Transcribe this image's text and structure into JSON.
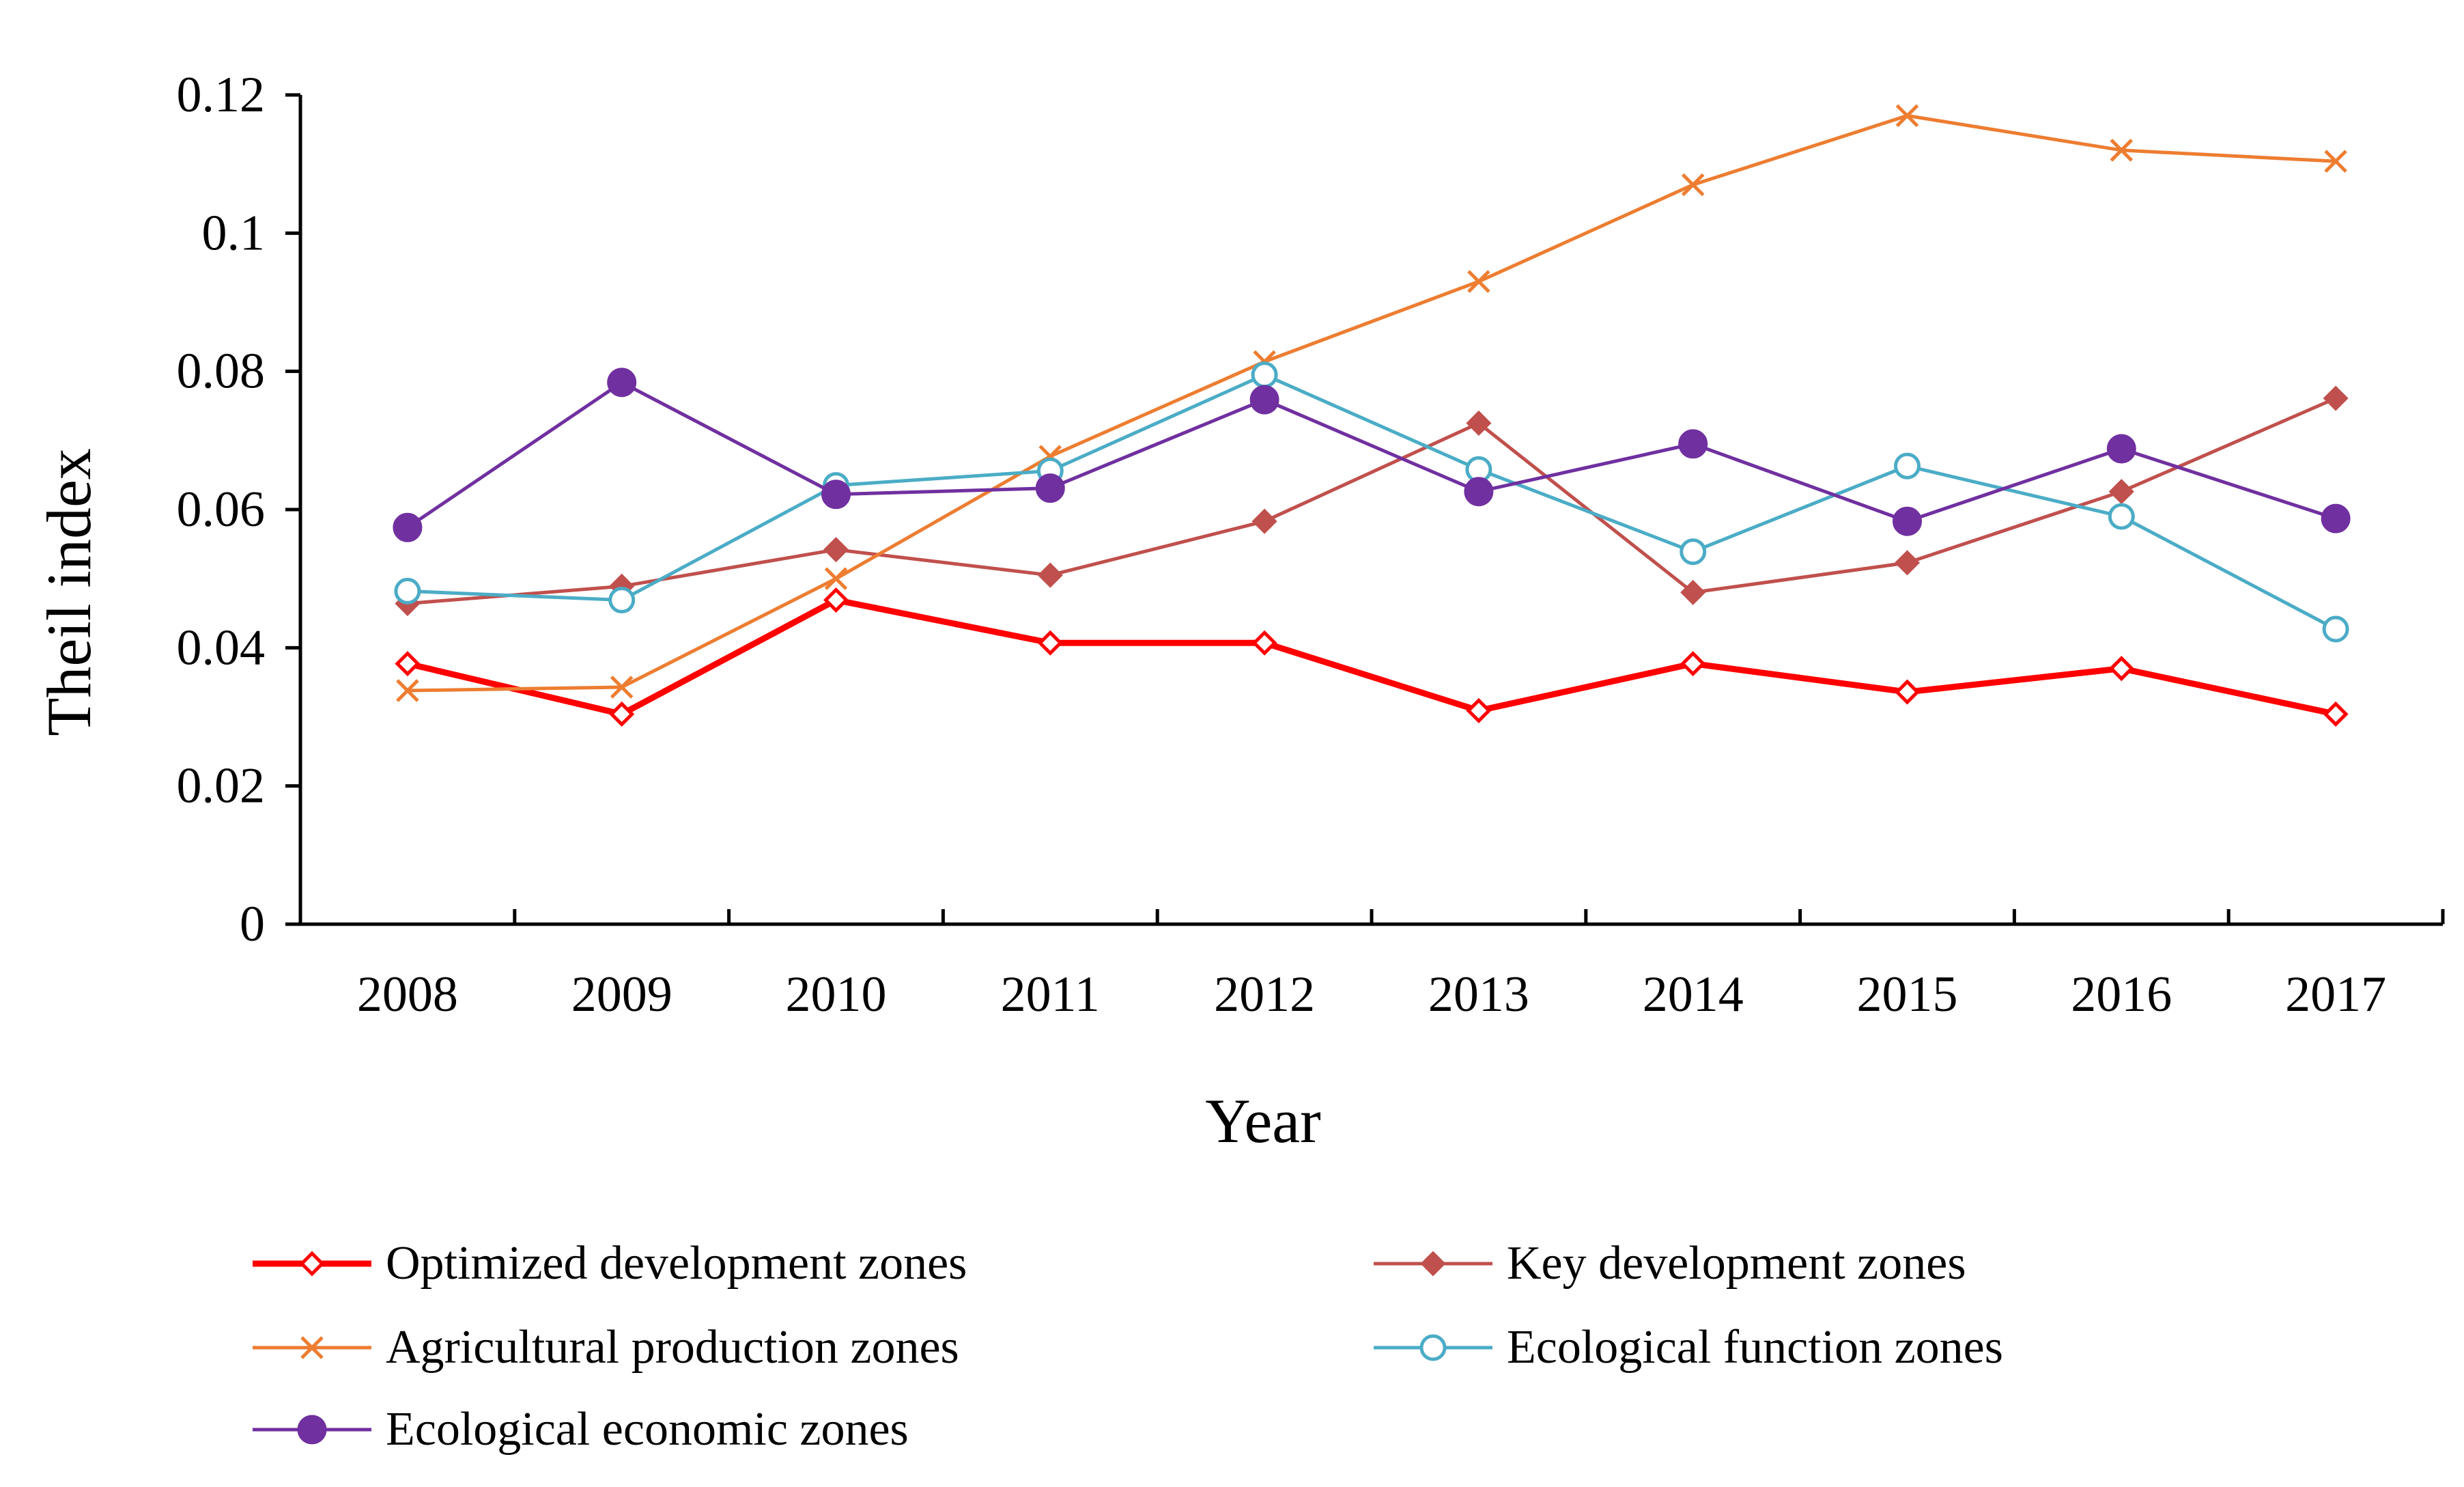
{
  "chart_data": {
    "type": "line",
    "title": "",
    "xlabel": "Year",
    "ylabel": "Theil index",
    "ylim": [
      0,
      0.12
    ],
    "yticks": [
      "0",
      "0.02",
      "0.04",
      "0.06",
      "0.08",
      "0.1",
      "0.12"
    ],
    "ytick_values": [
      0,
      0.02,
      0.04,
      0.06,
      0.08,
      0.1,
      0.12
    ],
    "categories": [
      "2008",
      "2009",
      "2010",
      "2011",
      "2012",
      "2013",
      "2014",
      "2015",
      "2016",
      "2017"
    ],
    "grid": false,
    "legend_position": "bottom",
    "series": [
      {
        "name": "Optimized development zones",
        "color": "#FF0000",
        "marker": "diamond-open",
        "values": [
          0.0377,
          0.0304,
          0.0469,
          0.0407,
          0.0407,
          0.0309,
          0.0377,
          0.0336,
          0.037,
          0.0304
        ]
      },
      {
        "name": "Key development zones",
        "color": "#C0504D",
        "marker": "diamond-filled",
        "values": [
          0.0464,
          0.0489,
          0.0542,
          0.0505,
          0.0583,
          0.0725,
          0.048,
          0.0523,
          0.0626,
          0.0761
        ]
      },
      {
        "name": "Agricultural production zones",
        "color": "#ED7D31",
        "marker": "x",
        "values": [
          0.0338,
          0.0343,
          0.05,
          0.0677,
          0.0814,
          0.093,
          0.107,
          0.117,
          0.112,
          0.1104
        ]
      },
      {
        "name": "Ecological function zones",
        "color": "#4BACC6",
        "marker": "circle-open",
        "values": [
          0.0482,
          0.0469,
          0.0635,
          0.0656,
          0.0795,
          0.0658,
          0.0539,
          0.0663,
          0.059,
          0.0427
        ]
      },
      {
        "name": "Ecological economic zones",
        "color": "#7030A0",
        "marker": "circle-filled",
        "values": [
          0.0574,
          0.0784,
          0.0622,
          0.0631,
          0.0759,
          0.0626,
          0.0695,
          0.0583,
          0.0688,
          0.0587
        ]
      }
    ]
  }
}
